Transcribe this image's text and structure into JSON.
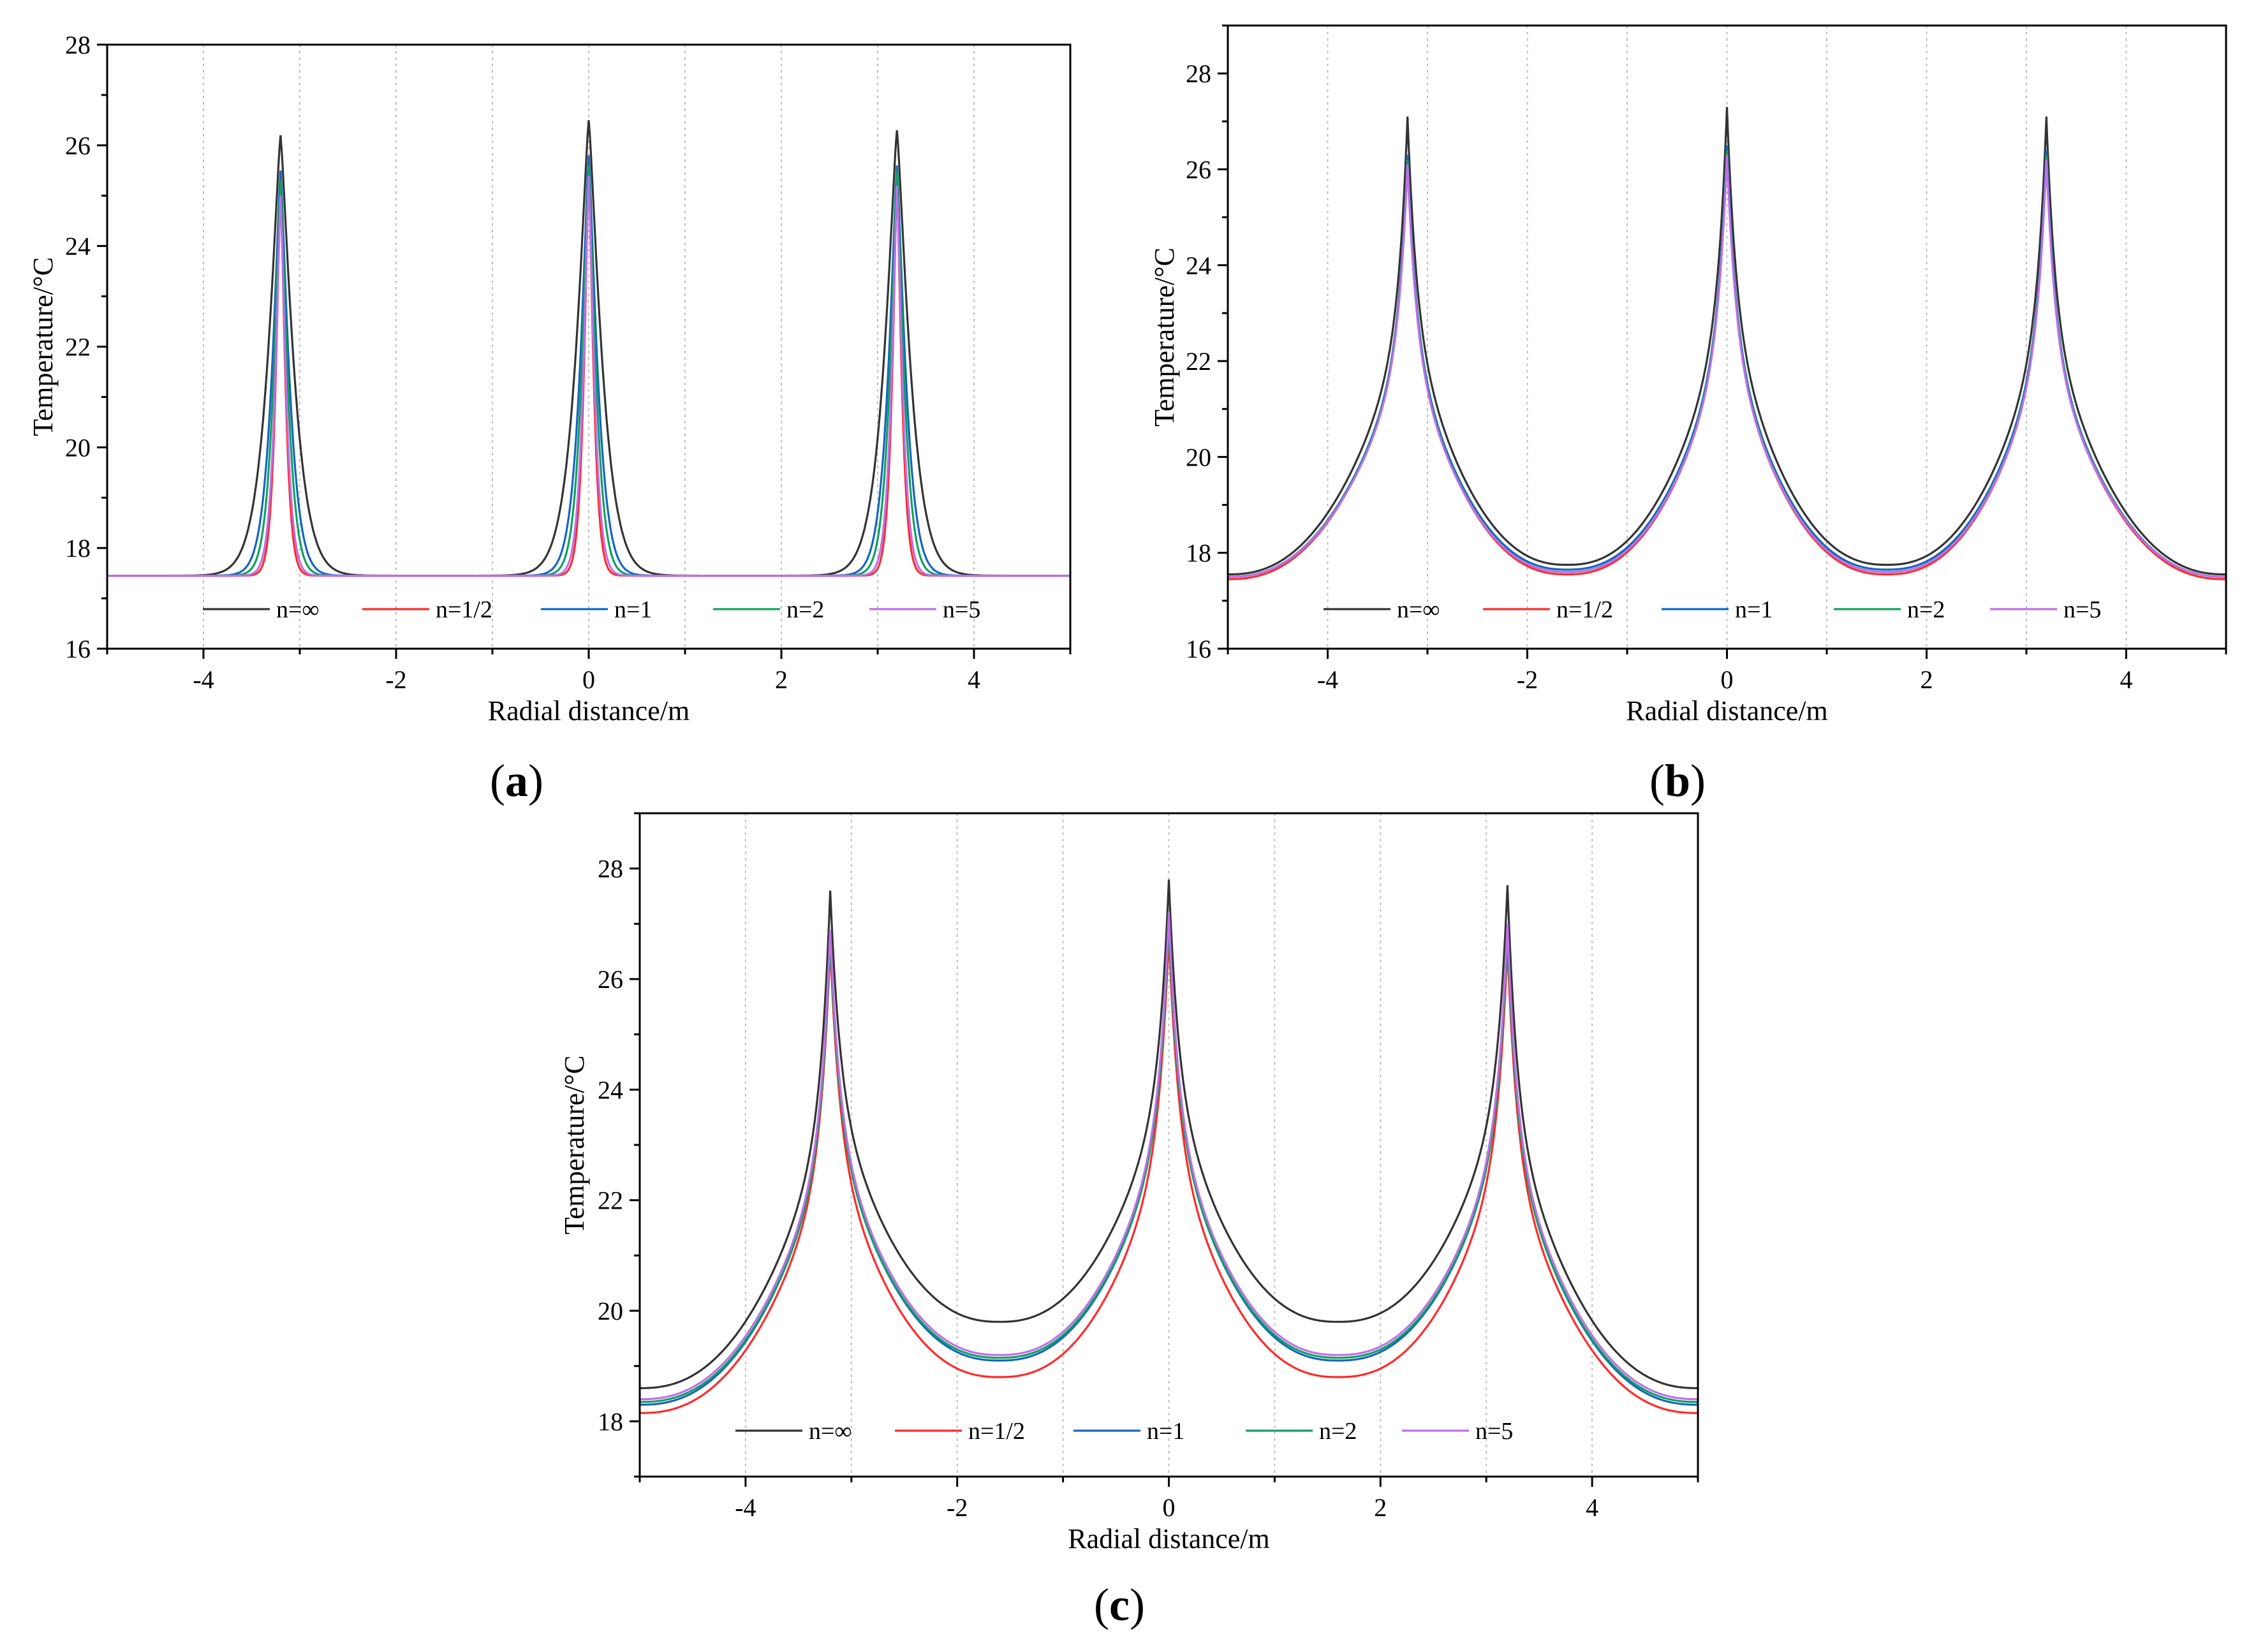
{
  "chart_data": [
    {
      "type": "line",
      "panel": "a",
      "xlabel": "Radial distance/m",
      "ylabel": "Temperature/°C",
      "xlim": [
        -5,
        5
      ],
      "ylim": [
        16,
        28
      ],
      "xticks": [
        -4,
        -2,
        0,
        2,
        4
      ],
      "yticks": [
        16,
        18,
        20,
        22,
        24,
        26,
        28
      ],
      "grid": "vertical-dotted",
      "legend_position": "bottom",
      "peaks_x": [
        -3.2,
        0,
        3.2
      ],
      "series": [
        {
          "name": "n=∞",
          "color": "#333333",
          "baseline": 17.45,
          "peaks": [
            26.2,
            26.5,
            26.3
          ],
          "valleys": [
            17.45,
            17.45,
            17.45,
            17.45
          ],
          "width": 0.32
        },
        {
          "name": "n=1/2",
          "color": "#ff2a2a",
          "baseline": 17.45,
          "peaks": [
            25.4,
            25.7,
            25.4
          ],
          "valleys": [
            17.45,
            17.45,
            17.45,
            17.45
          ],
          "width": 0.12
        },
        {
          "name": "n=1",
          "color": "#1565c0",
          "baseline": 17.45,
          "peaks": [
            25.5,
            25.8,
            25.6
          ],
          "valleys": [
            17.45,
            17.45,
            17.45,
            17.45
          ],
          "width": 0.22
        },
        {
          "name": "n=2",
          "color": "#10a060",
          "baseline": 17.45,
          "peaks": [
            25.3,
            25.6,
            25.5
          ],
          "valleys": [
            17.45,
            17.45,
            17.45,
            17.45
          ],
          "width": 0.18
        },
        {
          "name": "n=5",
          "color": "#bf6fe8",
          "baseline": 17.45,
          "peaks": [
            25.0,
            25.4,
            25.2
          ],
          "valleys": [
            17.45,
            17.45,
            17.45,
            17.45
          ],
          "width": 0.14
        }
      ]
    },
    {
      "type": "line",
      "panel": "b",
      "xlabel": "Radial distance/m",
      "ylabel": "Temperature/°C",
      "xlim": [
        -5,
        5
      ],
      "ylim": [
        16,
        29
      ],
      "xticks": [
        -4,
        -2,
        0,
        2,
        4
      ],
      "yticks": [
        16,
        18,
        20,
        22,
        24,
        26,
        28
      ],
      "grid": "vertical-dotted",
      "legend_position": "bottom",
      "peaks_x": [
        -3.2,
        0,
        3.2
      ],
      "series": [
        {
          "name": "n=∞",
          "color": "#333333",
          "peaks": [
            27.1,
            27.3,
            27.1
          ],
          "valleys": [
            17.55,
            17.75,
            17.75,
            17.55
          ]
        },
        {
          "name": "n=1/2",
          "color": "#ff2a2a",
          "peaks": [
            26.3,
            26.4,
            26.3
          ],
          "valleys": [
            17.45,
            17.55,
            17.55,
            17.45
          ]
        },
        {
          "name": "n=1",
          "color": "#1565c0",
          "peaks": [
            26.3,
            26.5,
            26.4
          ],
          "valleys": [
            17.5,
            17.65,
            17.65,
            17.5
          ]
        },
        {
          "name": "n=2",
          "color": "#10a060",
          "peaks": [
            26.2,
            26.4,
            26.3
          ],
          "valleys": [
            17.5,
            17.6,
            17.6,
            17.5
          ]
        },
        {
          "name": "n=5",
          "color": "#bf6fe8",
          "peaks": [
            26.1,
            26.3,
            26.2
          ],
          "valleys": [
            17.5,
            17.6,
            17.6,
            17.5
          ]
        }
      ]
    },
    {
      "type": "line",
      "panel": "c",
      "xlabel": "Radial distance/m",
      "ylabel": "Temperature/°C",
      "xlim": [
        -5,
        5
      ],
      "ylim": [
        17,
        29
      ],
      "xticks": [
        -4,
        -2,
        0,
        2,
        4
      ],
      "yticks": [
        18,
        20,
        22,
        24,
        26,
        28
      ],
      "grid": "vertical-dotted",
      "legend_position": "bottom",
      "peaks_x": [
        -3.2,
        0,
        3.2
      ],
      "series": [
        {
          "name": "n=∞",
          "color": "#333333",
          "peaks": [
            27.6,
            27.8,
            27.7
          ],
          "valleys": [
            18.6,
            19.8,
            19.8,
            18.6
          ]
        },
        {
          "name": "n=1/2",
          "color": "#ff2a2a",
          "peaks": [
            26.6,
            26.8,
            26.6
          ],
          "valleys": [
            18.15,
            18.8,
            18.8,
            18.15
          ]
        },
        {
          "name": "n=1",
          "color": "#1565c0",
          "peaks": [
            26.8,
            27.1,
            26.9
          ],
          "valleys": [
            18.3,
            19.1,
            19.1,
            18.3
          ]
        },
        {
          "name": "n=2",
          "color": "#10a060",
          "peaks": [
            26.7,
            27.0,
            26.8
          ],
          "valleys": [
            18.35,
            19.15,
            19.15,
            18.35
          ]
        },
        {
          "name": "n=5",
          "color": "#bf6fe8",
          "peaks": [
            26.9,
            27.2,
            27.0
          ],
          "valleys": [
            18.4,
            19.2,
            19.2,
            18.4
          ]
        }
      ]
    }
  ]
}
